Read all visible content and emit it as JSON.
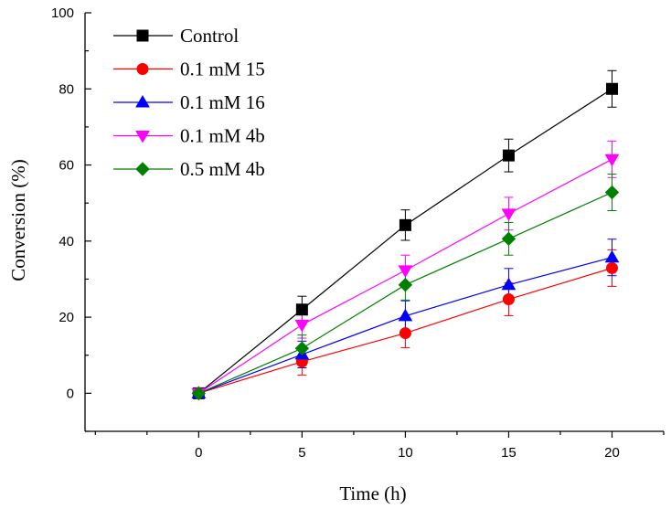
{
  "chart_data": {
    "type": "line",
    "title": "",
    "xlabel": "Time (h)",
    "ylabel": "Conversion (%)",
    "xlim": [
      -5.5,
      22.5
    ],
    "ylim": [
      -10,
      100
    ],
    "x": [
      0,
      5,
      10,
      15,
      20
    ],
    "x_ticks": [
      "0",
      "5",
      "10",
      "15",
      "20"
    ],
    "y_ticks": [
      "0",
      "20",
      "40",
      "60",
      "80",
      "100"
    ],
    "legend_position": "top-left",
    "series": [
      {
        "name": "Control",
        "marker": "square",
        "color": "#000000",
        "values": [
          0,
          22,
          44.2,
          62.5,
          80
        ],
        "errors": [
          0.6,
          3.5,
          4,
          4.3,
          4.8
        ]
      },
      {
        "name": "0.1 mM 15",
        "marker": "circle",
        "color": "#ff0000",
        "values": [
          0,
          8.3,
          15.8,
          24.7,
          32.9
        ],
        "errors": [
          0.6,
          3.5,
          3.8,
          4.3,
          4.8
        ]
      },
      {
        "name": "0.1 mM 16",
        "marker": "triangle-up",
        "color": "#0000ff",
        "values": [
          0,
          10.2,
          20.3,
          28.5,
          35.7
        ],
        "errors": [
          0.6,
          3.5,
          4,
          4.3,
          4.8
        ]
      },
      {
        "name": "0.1 mM 4b",
        "marker": "triangle-down",
        "color": "#ff00ff",
        "values": [
          0,
          18,
          32.3,
          47.2,
          61.5
        ],
        "errors": [
          0.6,
          3.5,
          4,
          4.3,
          4.8
        ]
      },
      {
        "name": "0.5 mM 4b",
        "marker": "diamond",
        "color": "#008000",
        "values": [
          0,
          11.8,
          28.5,
          40.6,
          52.8
        ],
        "errors": [
          0.6,
          3.5,
          4,
          4.3,
          4.8
        ]
      }
    ]
  }
}
